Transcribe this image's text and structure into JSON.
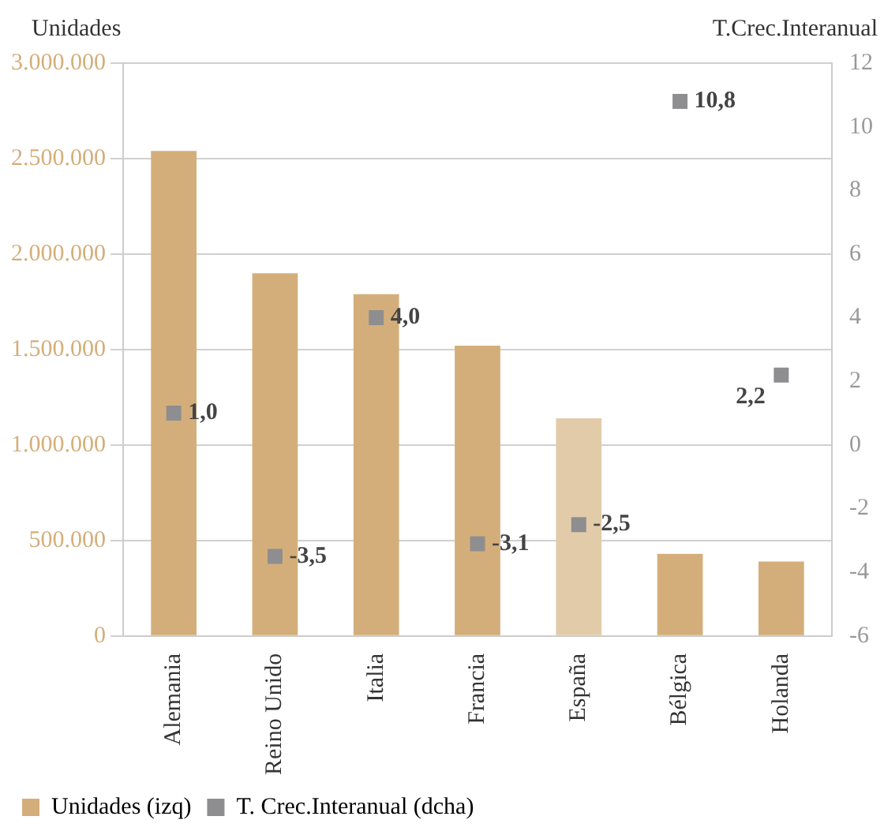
{
  "chart_data": {
    "type": "bar",
    "ylabel": "Unidades",
    "y2label": "T.Crec.Interanual",
    "categories": [
      "Alemania",
      "Reino Unido",
      "Italia",
      "Francia",
      "España",
      "Bélgica",
      "Holanda"
    ],
    "series": [
      {
        "name": "Unidades (izq)",
        "color": "#d4ae7a",
        "colors": [
          "#d4ae7a",
          "#d4ae7a",
          "#d4ae7a",
          "#d4ae7a",
          "#e2cba8",
          "#d4ae7a",
          "#d4ae7a"
        ],
        "values": [
          2540000,
          1900000,
          1790000,
          1520000,
          1140000,
          430000,
          390000
        ]
      },
      {
        "name": "T. Crec.Interanual (dcha)",
        "type": "scatter",
        "axis": "y2",
        "color": "#8e8e90",
        "marker": "square",
        "values": [
          1.0,
          -3.5,
          4.0,
          -3.1,
          -2.5,
          10.8,
          2.2
        ],
        "value_labels": [
          "1,0",
          "-3,5",
          "4,0",
          "-3,1",
          "-2,5",
          "10,8",
          "2,2"
        ]
      }
    ],
    "ylim": [
      0,
      3000000
    ],
    "yticks": [
      {
        "value": 0,
        "label": "0"
      },
      {
        "value": 500000,
        "label": "500.000"
      },
      {
        "value": 1000000,
        "label": "1.000.000"
      },
      {
        "value": 1500000,
        "label": "1.500.000"
      },
      {
        "value": 2000000,
        "label": "2.000.000"
      },
      {
        "value": 2500000,
        "label": "2.500.000"
      },
      {
        "value": 3000000,
        "label": "3.000.000"
      }
    ],
    "y2lim": [
      -6,
      12
    ],
    "y2ticks": [
      -6,
      -4,
      -2,
      0,
      2,
      4,
      6,
      8,
      10,
      12
    ],
    "grid": "y",
    "legend": "bottom left"
  }
}
